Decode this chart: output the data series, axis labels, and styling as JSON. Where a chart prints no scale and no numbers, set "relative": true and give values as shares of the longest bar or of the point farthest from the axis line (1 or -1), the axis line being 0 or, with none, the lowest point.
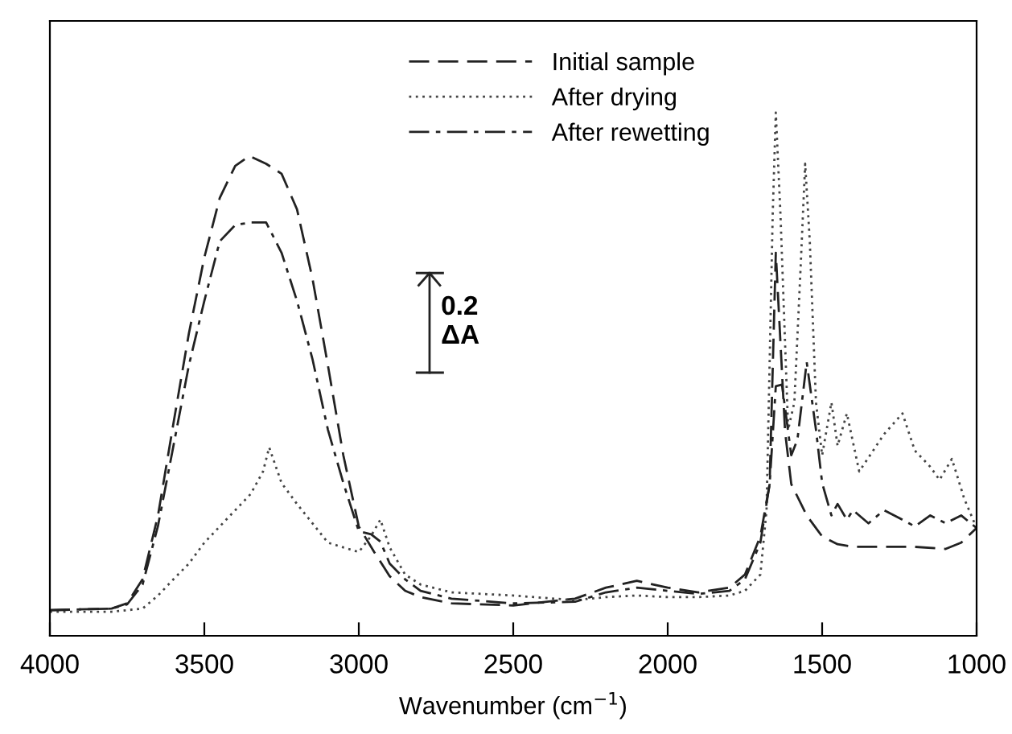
{
  "chart_data": {
    "type": "line",
    "relative": true,
    "xlabel": "Wavenumber (cm$^{−1}$)",
    "xlim": [
      4000,
      1000
    ],
    "xticks": [
      4000,
      3500,
      3000,
      2500,
      2000,
      1500,
      1000
    ],
    "legend": "top",
    "grid": false,
    "tick_labels": "x",
    "annotations": [
      "0.2\nΔA"
    ],
    "series": [
      {
        "name": "Initial sample",
        "color": "#222222",
        "line_style": "dashed",
        "x": [
          4000,
          3800,
          3750,
          3700,
          3650,
          3600,
          3550,
          3500,
          3450,
          3400,
          3354,
          3300,
          3250,
          3200,
          3150,
          3100,
          3050,
          3000,
          2950,
          2900,
          2850,
          2800,
          2700,
          2500,
          2300,
          2200,
          2100,
          2000,
          1900,
          1800,
          1750,
          1700,
          1670,
          1650,
          1620,
          1600,
          1550,
          1500,
          1450,
          1400,
          1300,
          1200,
          1100,
          1050,
          1000
        ],
        "values": [
          0.049,
          0.052,
          0.062,
          0.108,
          0.23,
          0.406,
          0.578,
          0.723,
          0.837,
          0.898,
          0.917,
          0.902,
          0.883,
          0.815,
          0.683,
          0.517,
          0.345,
          0.209,
          0.16,
          0.114,
          0.086,
          0.074,
          0.062,
          0.058,
          0.071,
          0.092,
          0.105,
          0.092,
          0.083,
          0.092,
          0.117,
          0.19,
          0.29,
          0.732,
          0.39,
          0.29,
          0.23,
          0.19,
          0.175,
          0.17,
          0.17,
          0.17,
          0.166,
          0.178,
          0.206
        ]
      },
      {
        "name": "After drying",
        "color": "#444444",
        "line_style": "dotted",
        "x": [
          4000,
          3800,
          3700,
          3650,
          3600,
          3550,
          3500,
          3450,
          3400,
          3350,
          3310,
          3290,
          3250,
          3200,
          3150,
          3100,
          3050,
          3000,
          2960,
          2930,
          2900,
          2850,
          2800,
          2700,
          2500,
          2300,
          2200,
          2100,
          2000,
          1900,
          1800,
          1750,
          1700,
          1680,
          1660,
          1650,
          1635,
          1610,
          1590,
          1570,
          1555,
          1540,
          1520,
          1500,
          1470,
          1450,
          1420,
          1380,
          1300,
          1240,
          1200,
          1150,
          1120,
          1080,
          1040,
          1000
        ],
        "values": [
          0.046,
          0.046,
          0.052,
          0.077,
          0.108,
          0.138,
          0.178,
          0.209,
          0.24,
          0.271,
          0.314,
          0.36,
          0.292,
          0.252,
          0.215,
          0.178,
          0.169,
          0.16,
          0.191,
          0.222,
          0.169,
          0.117,
          0.098,
          0.083,
          0.077,
          0.068,
          0.074,
          0.077,
          0.074,
          0.074,
          0.077,
          0.086,
          0.117,
          0.24,
          0.806,
          1.0,
          0.806,
          0.394,
          0.446,
          0.7,
          0.902,
          0.754,
          0.446,
          0.345,
          0.446,
          0.363,
          0.425,
          0.314,
          0.385,
          0.425,
          0.354,
          0.323,
          0.298,
          0.338,
          0.262,
          0.206
        ]
      },
      {
        "name": "After rewetting",
        "color": "#222222",
        "line_style": "dashdot",
        "x": [
          4000,
          3800,
          3750,
          3700,
          3650,
          3600,
          3550,
          3500,
          3450,
          3400,
          3350,
          3300,
          3250,
          3200,
          3150,
          3100,
          3050,
          3000,
          2960,
          2930,
          2900,
          2850,
          2800,
          2700,
          2500,
          2300,
          2200,
          2100,
          2000,
          1900,
          1800,
          1750,
          1700,
          1670,
          1650,
          1630,
          1600,
          1580,
          1550,
          1520,
          1500,
          1470,
          1450,
          1420,
          1400,
          1350,
          1300,
          1250,
          1200,
          1150,
          1100,
          1050,
          1000
        ],
        "values": [
          0.049,
          0.052,
          0.06,
          0.098,
          0.21,
          0.363,
          0.517,
          0.64,
          0.754,
          0.785,
          0.79,
          0.79,
          0.732,
          0.64,
          0.529,
          0.394,
          0.292,
          0.2,
          0.194,
          0.18,
          0.138,
          0.108,
          0.086,
          0.071,
          0.062,
          0.065,
          0.083,
          0.092,
          0.086,
          0.08,
          0.086,
          0.108,
          0.178,
          0.29,
          0.477,
          0.48,
          0.345,
          0.375,
          0.523,
          0.394,
          0.292,
          0.23,
          0.252,
          0.222,
          0.24,
          0.215,
          0.24,
          0.225,
          0.209,
          0.23,
          0.215,
          0.23,
          0.206
        ]
      }
    ]
  }
}
